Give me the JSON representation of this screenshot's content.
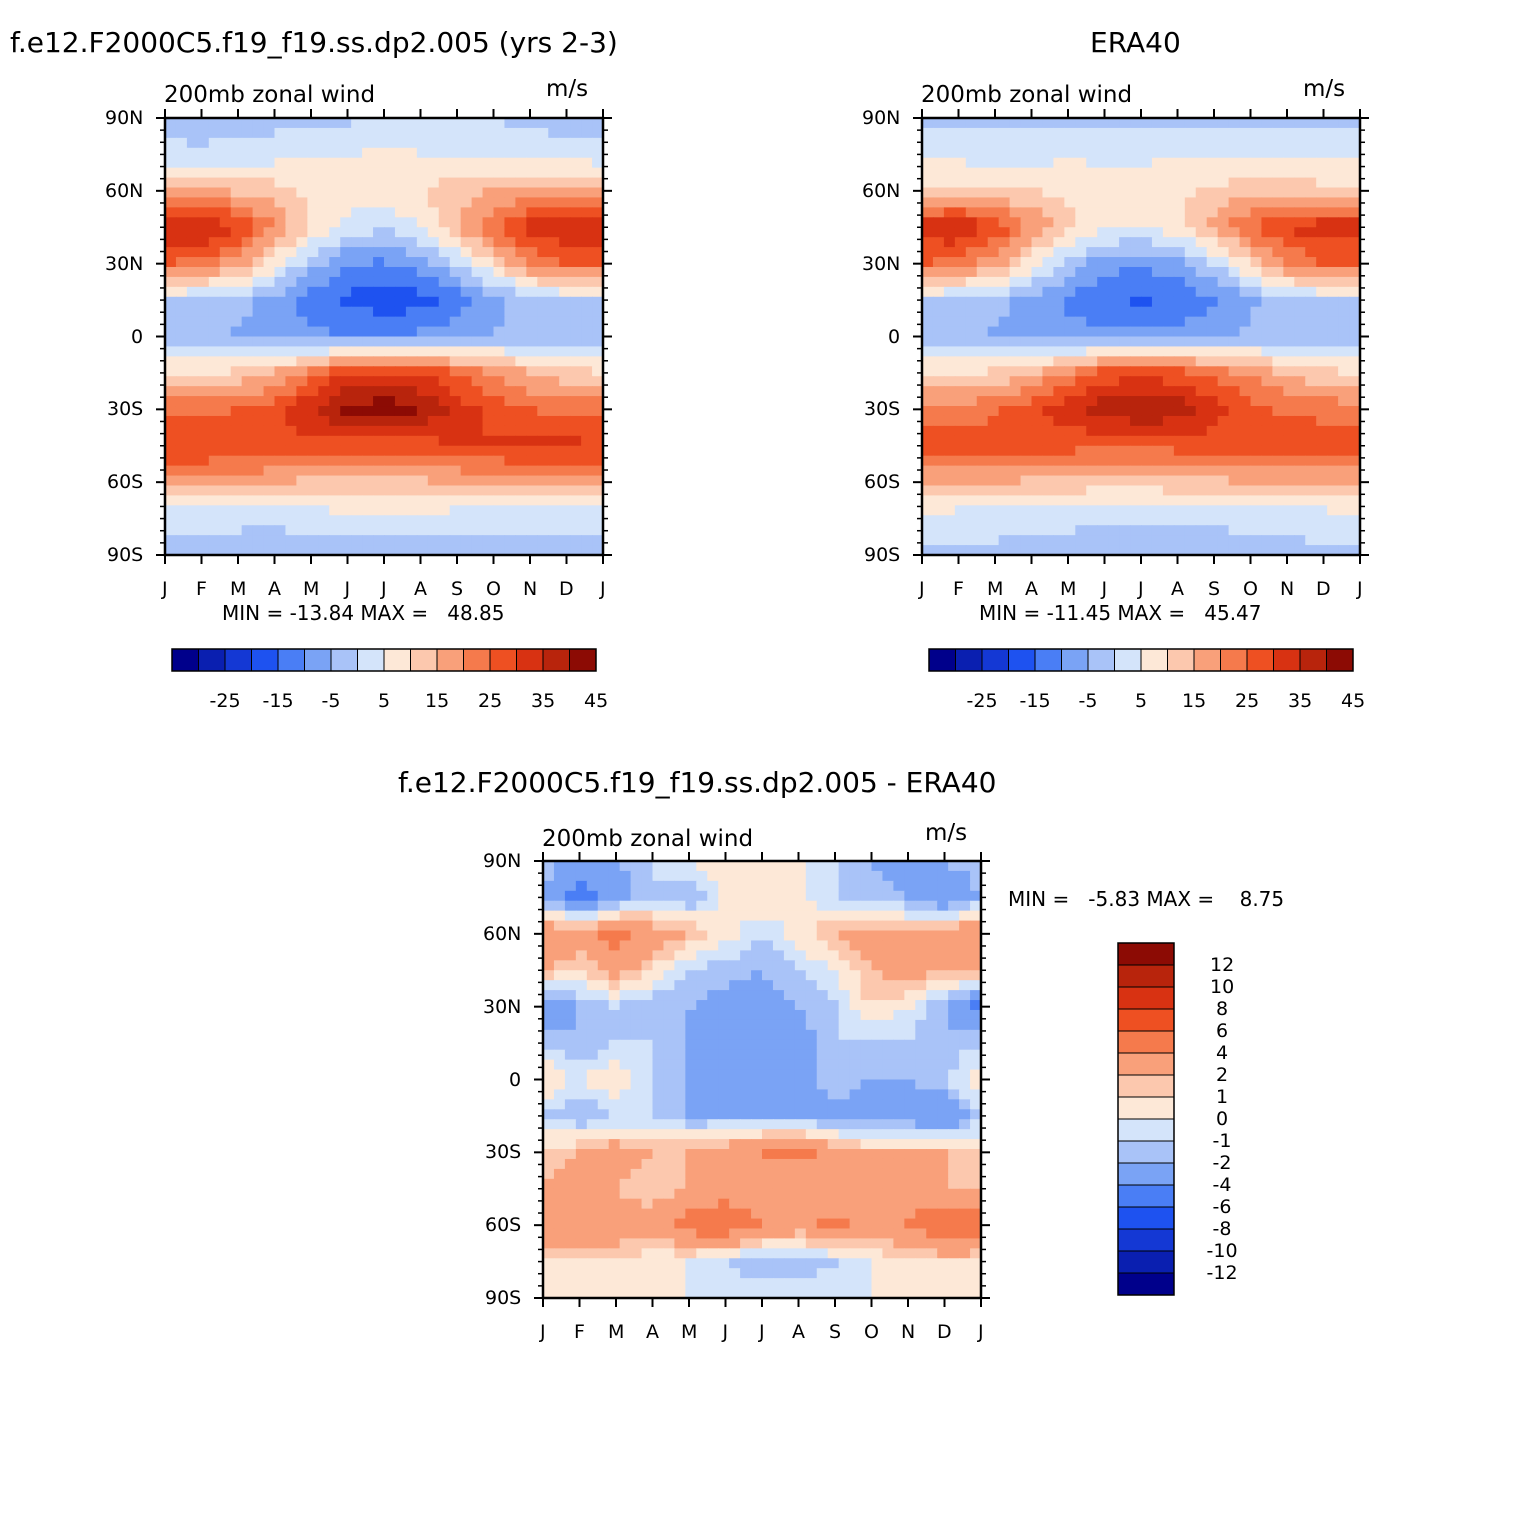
{
  "panels": [
    {
      "title": "f.e12.F2000C5.f19_f19.ss.dp2.005 (yrs 2-3)",
      "subtitle": "200mb zonal wind",
      "units": "m/s",
      "min_max": "MIN = -13.84 MAX =   48.85"
    },
    {
      "title": "ERA40",
      "subtitle": "200mb zonal wind",
      "units": "m/s",
      "min_max": "MIN = -11.45 MAX =   45.47"
    },
    {
      "title": "f.e12.F2000C5.f19_f19.ss.dp2.005 - ERA40",
      "subtitle": "200mb zonal wind",
      "units": "m/s",
      "min_max": "MIN =   -5.83 MAX =    8.75"
    }
  ],
  "colors": {
    "abs_scale": [
      "#00008b",
      "#0a1fb0",
      "#1438d4",
      "#1e52f0",
      "#4a7ef5",
      "#7aa3f5",
      "#a9c3f8",
      "#d4e4fa",
      "#fde8d7",
      "#fcc8ae",
      "#f9a07a",
      "#f57a4c",
      "#ee5022",
      "#d83212",
      "#b8240c",
      "#8c0b04"
    ],
    "diff_scale": [
      "#00008b",
      "#0a1fb0",
      "#1438d4",
      "#1e52f0",
      "#4a7ef5",
      "#7aa3f5",
      "#a9c3f8",
      "#d4e4fa",
      "#fde8d7",
      "#fcc8ae",
      "#f9a07a",
      "#f57a4c",
      "#ee5022",
      "#d83212",
      "#b8240c",
      "#8c0b04"
    ]
  },
  "chart_data": [
    {
      "type": "heatmap",
      "title": "f.e12.F2000C5.f19_f19.ss.dp2.005 (yrs 2-3)",
      "subtitle": "200mb zonal wind",
      "units": "m/s",
      "x": [
        "J",
        "F",
        "M",
        "A",
        "M",
        "J",
        "J",
        "A",
        "S",
        "O",
        "N",
        "D",
        "J"
      ],
      "y": [
        "90N",
        "60N",
        "30N",
        "0",
        "30S",
        "60S",
        "90S"
      ],
      "lat": [
        90,
        75,
        60,
        45,
        30,
        15,
        0,
        -15,
        -30,
        -45,
        -60,
        -75,
        -90
      ],
      "values": [
        [
          2,
          2,
          3,
          3,
          3,
          4,
          6,
          7,
          6,
          5,
          4,
          3,
          2
        ],
        [
          7,
          6,
          7,
          8,
          9,
          10,
          11,
          10,
          9,
          8,
          7,
          7,
          7
        ],
        [
          20,
          20,
          19,
          17,
          14,
          13,
          13,
          15,
          18,
          20,
          21,
          21,
          20
        ],
        [
          40,
          42,
          35,
          25,
          15,
          8,
          6,
          10,
          20,
          30,
          38,
          40,
          40
        ],
        [
          30,
          28,
          22,
          12,
          2,
          -5,
          -6,
          -3,
          5,
          15,
          25,
          30,
          30
        ],
        [
          5,
          4,
          2,
          -2,
          -7,
          -11,
          -13,
          -12,
          -8,
          -2,
          3,
          5,
          5
        ],
        [
          3,
          1,
          -1,
          -3,
          -4,
          -5,
          -5,
          -4,
          -2,
          0,
          2,
          3,
          3
        ],
        [
          15,
          15,
          16,
          20,
          28,
          35,
          37,
          35,
          30,
          25,
          20,
          17,
          15
        ],
        [
          28,
          28,
          30,
          33,
          40,
          46,
          48,
          45,
          38,
          33,
          30,
          29,
          28
        ],
        [
          36,
          36,
          35,
          35,
          33,
          32,
          32,
          33,
          35,
          36,
          36,
          36,
          36
        ],
        [
          22,
          22,
          21,
          20,
          19,
          18,
          18,
          19,
          20,
          21,
          22,
          22,
          22
        ],
        [
          6,
          6,
          6,
          6,
          7,
          8,
          8,
          8,
          7,
          6,
          6,
          6,
          6
        ],
        [
          3,
          3,
          3,
          2,
          2,
          2,
          2,
          2,
          2,
          3,
          3,
          3,
          3
        ]
      ],
      "levels": [
        -30,
        -25,
        -20,
        -15,
        -10,
        -5,
        0,
        5,
        10,
        15,
        20,
        25,
        30,
        35,
        40,
        45
      ],
      "colorbar_labels": [
        "-25",
        "-15",
        "-5",
        "5",
        "15",
        "25",
        "35",
        "45"
      ],
      "min": -13.84,
      "max": 48.85
    },
    {
      "type": "heatmap",
      "title": "ERA40",
      "subtitle": "200mb zonal wind",
      "units": "m/s",
      "x": [
        "J",
        "F",
        "M",
        "A",
        "M",
        "J",
        "J",
        "A",
        "S",
        "O",
        "N",
        "D",
        "J"
      ],
      "y": [
        "90N",
        "60N",
        "30N",
        "0",
        "30S",
        "60S",
        "90S"
      ],
      "lat": [
        90,
        75,
        60,
        45,
        30,
        15,
        0,
        -15,
        -30,
        -45,
        -60,
        -75,
        -90
      ],
      "values": [
        [
          3,
          3,
          3,
          3,
          3,
          3,
          4,
          4,
          4,
          4,
          3,
          3,
          3
        ],
        [
          8,
          8,
          8,
          8,
          9,
          9,
          9,
          9,
          9,
          9,
          8,
          8,
          8
        ],
        [
          17,
          17,
          16,
          15,
          14,
          13,
          13,
          14,
          16,
          18,
          18,
          17,
          17
        ],
        [
          38,
          40,
          34,
          25,
          17,
          11,
          10,
          13,
          22,
          30,
          36,
          38,
          38
        ],
        [
          30,
          28,
          22,
          12,
          3,
          -3,
          -4,
          -2,
          5,
          15,
          25,
          30,
          30
        ],
        [
          5,
          4,
          2,
          -2,
          -6,
          -9,
          -11,
          -9,
          -6,
          -1,
          3,
          5,
          5
        ],
        [
          3,
          1,
          -1,
          -2,
          -3,
          -4,
          -4,
          -3,
          -1,
          1,
          2,
          3,
          3
        ],
        [
          15,
          15,
          16,
          19,
          26,
          32,
          33,
          32,
          28,
          24,
          19,
          16,
          15
        ],
        [
          27,
          27,
          29,
          33,
          38,
          43,
          45,
          43,
          37,
          32,
          29,
          28,
          27
        ],
        [
          34,
          34,
          33,
          33,
          32,
          31,
          31,
          32,
          33,
          34,
          34,
          34,
          34
        ],
        [
          20,
          20,
          20,
          19,
          18,
          17,
          17,
          18,
          19,
          20,
          20,
          20,
          20
        ],
        [
          8,
          7,
          7,
          6,
          6,
          6,
          6,
          6,
          6,
          7,
          7,
          7,
          8
        ],
        [
          4,
          4,
          4,
          3,
          3,
          2,
          2,
          2,
          2,
          3,
          3,
          4,
          4
        ]
      ],
      "levels": [
        -30,
        -25,
        -20,
        -15,
        -10,
        -5,
        0,
        5,
        10,
        15,
        20,
        25,
        30,
        35,
        40,
        45
      ],
      "colorbar_labels": [
        "-25",
        "-15",
        "-5",
        "5",
        "15",
        "25",
        "35",
        "45"
      ],
      "min": -11.45,
      "max": 45.47
    },
    {
      "type": "heatmap",
      "title": "f.e12.F2000C5.f19_f19.ss.dp2.005 - ERA40",
      "subtitle": "200mb zonal wind",
      "units": "m/s",
      "x": [
        "J",
        "F",
        "M",
        "A",
        "M",
        "J",
        "J",
        "A",
        "S",
        "O",
        "N",
        "D",
        "J"
      ],
      "y": [
        "90N",
        "60N",
        "30N",
        "0",
        "30S",
        "60S",
        "90S"
      ],
      "lat": [
        90,
        75,
        60,
        45,
        30,
        15,
        0,
        -15,
        -30,
        -45,
        -60,
        -75,
        -90
      ],
      "values": [
        [
          -1,
          -3,
          -2,
          -1,
          0,
          1,
          1,
          0,
          -1,
          -2,
          -3,
          -2,
          -1
        ],
        [
          -2,
          -5,
          -3,
          -1,
          -2,
          0.5,
          1,
          0.5,
          -1,
          -1,
          -2,
          -4,
          -2
        ],
        [
          4,
          3,
          5,
          3,
          2,
          0.5,
          -1,
          0.5,
          2,
          3,
          2,
          3,
          4
        ],
        [
          2,
          1,
          3,
          1,
          -1,
          -1.5,
          -2,
          -1,
          0,
          2,
          3,
          2,
          2
        ],
        [
          -4,
          -2,
          -1,
          -2,
          -2,
          -2.5,
          -3,
          -2,
          -1,
          1,
          0,
          -2,
          -5
        ],
        [
          -1,
          -2,
          -1,
          -1,
          -2,
          -3,
          -4,
          -3,
          -1,
          -1,
          -1,
          -2,
          -1
        ],
        [
          1,
          0,
          1,
          -1,
          -2,
          -3,
          -2,
          -3,
          -1,
          -2,
          -2,
          -1,
          1
        ],
        [
          -1,
          -2,
          -1,
          -1,
          -2,
          -2,
          -2,
          -2,
          -3,
          -3,
          -3,
          -4,
          -1
        ],
        [
          1,
          2,
          3,
          2,
          2,
          3,
          4,
          5,
          3,
          2,
          2,
          2,
          1
        ],
        [
          2,
          3,
          2,
          1,
          2,
          3,
          2,
          2,
          2,
          2,
          3,
          2,
          2
        ],
        [
          4,
          4,
          3,
          3,
          5,
          6,
          4,
          3,
          5,
          3,
          4,
          6,
          5
        ],
        [
          1,
          1,
          1,
          0,
          0,
          -1,
          -2,
          -2,
          -1,
          0,
          1,
          1,
          1
        ],
        [
          0,
          0,
          0,
          0,
          0,
          0,
          0,
          0,
          0,
          0,
          0,
          0,
          0
        ]
      ],
      "levels": [
        -14,
        -12,
        -10,
        -8,
        -6,
        -4,
        -2,
        -1,
        0,
        1,
        2,
        4,
        6,
        8,
        10,
        12
      ],
      "colorbar_labels": [
        "12",
        "10",
        "8",
        "6",
        "4",
        "2",
        "1",
        "0",
        "-1",
        "-2",
        "-4",
        "-6",
        "-8",
        "-10",
        "-12"
      ],
      "min": -5.83,
      "max": 8.75
    }
  ]
}
